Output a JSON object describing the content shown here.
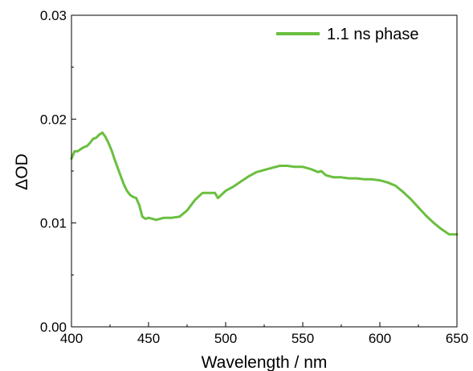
{
  "chart_data": {
    "type": "line",
    "xlabel": "Wavelength / nm",
    "ylabel": "ΔOD",
    "xlim": [
      400,
      650
    ],
    "ylim": [
      0.0,
      0.03
    ],
    "x_ticks": [
      400,
      450,
      500,
      550,
      600,
      650
    ],
    "x_tick_labels": [
      "400",
      "450",
      "500",
      "550",
      "600",
      "650"
    ],
    "y_ticks": [
      0.0,
      0.01,
      0.02,
      0.03
    ],
    "y_tick_labels": [
      "0.00",
      "0.01",
      "0.02",
      "0.03"
    ],
    "grid": false,
    "legend_position": "top-right",
    "series": [
      {
        "name": "1.1 ns phase",
        "color": "#6ABF3F",
        "x": [
          400,
          402,
          404,
          406,
          408,
          410,
          412,
          414,
          416,
          418,
          420,
          422,
          424,
          426,
          428,
          430,
          432,
          434,
          436,
          438,
          440,
          442,
          444,
          446,
          448,
          450,
          455,
          460,
          465,
          470,
          475,
          480,
          485,
          490,
          493,
          495,
          500,
          505,
          510,
          515,
          520,
          525,
          530,
          535,
          540,
          545,
          550,
          555,
          560,
          562,
          565,
          570,
          575,
          580,
          585,
          590,
          595,
          600,
          605,
          610,
          615,
          620,
          625,
          630,
          635,
          640,
          645,
          650
        ],
        "y": [
          0.0162,
          0.0169,
          0.0169,
          0.0171,
          0.0173,
          0.0174,
          0.0177,
          0.0181,
          0.0182,
          0.0185,
          0.0187,
          0.0183,
          0.0177,
          0.017,
          0.0161,
          0.0153,
          0.0145,
          0.0137,
          0.0131,
          0.0127,
          0.0125,
          0.0124,
          0.0117,
          0.0106,
          0.0104,
          0.0105,
          0.0103,
          0.0105,
          0.0105,
          0.0106,
          0.0112,
          0.0122,
          0.0129,
          0.0129,
          0.0129,
          0.0124,
          0.0131,
          0.0135,
          0.014,
          0.0145,
          0.0149,
          0.0151,
          0.0153,
          0.0155,
          0.0155,
          0.0154,
          0.0154,
          0.0152,
          0.0149,
          0.015,
          0.0146,
          0.0144,
          0.0144,
          0.0143,
          0.0143,
          0.0142,
          0.0142,
          0.0141,
          0.0139,
          0.0136,
          0.013,
          0.0123,
          0.0115,
          0.0107,
          0.01,
          0.0094,
          0.0089,
          0.0089
        ]
      }
    ]
  }
}
